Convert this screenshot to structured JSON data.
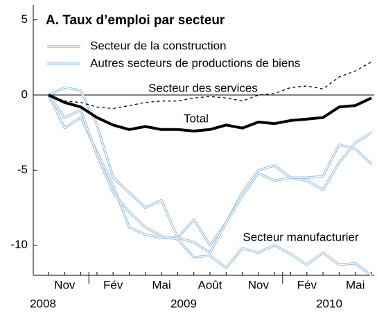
{
  "chart_data": {
    "type": "line",
    "title": "A. Taux d’emploi par secteur",
    "categories": [
      null,
      "Nov",
      null,
      null,
      "Fév",
      null,
      null,
      "Mai",
      null,
      null,
      "Août",
      null,
      null,
      "Nov",
      null,
      null,
      "Fév",
      null,
      null,
      "Mai",
      null
    ],
    "years": [
      "2008",
      "2009",
      "2010"
    ],
    "ylim": [
      -12,
      6
    ],
    "yticks": [
      5,
      0,
      -5,
      -10
    ],
    "series": [
      {
        "name": "Secteur de la construction",
        "color": "#9ec3e0",
        "style": "double",
        "legend": true,
        "values": [
          0,
          0.5,
          0.3,
          -2,
          -5.5,
          -6.5,
          -7.5,
          -7,
          -9.5,
          -8.3,
          -10,
          -8.5,
          -6.5,
          -5.0,
          -4.7,
          -5.5,
          -5.7,
          -6.3,
          -4.5,
          -3.2,
          -2.5
        ]
      },
      {
        "name": "Autres secteurs de productions de biens",
        "color": "#9ec3e0",
        "style": "double",
        "legend": true,
        "values": [
          0,
          -2.2,
          -1.5,
          -3.8,
          -6,
          -8.8,
          -9.3,
          -9.5,
          -9.5,
          -9.8,
          -10.5,
          -8.5,
          -6.7,
          -5.2,
          -5.7,
          -5.5,
          -5.5,
          -5.4,
          -3.3,
          -3.6,
          -4.6
        ]
      },
      {
        "name": "Secteur manufacturier",
        "color": "#9ec3e0",
        "style": "double",
        "legend": false,
        "values": [
          0,
          -1.5,
          -1.0,
          -4,
          -6.5,
          -7.8,
          -8.8,
          -9.4,
          -9.6,
          -10.8,
          -10.7,
          -11.5,
          -10.2,
          -10.5,
          -10.0,
          -10.6,
          -11.3,
          -10.5,
          -11.3,
          -11.2,
          -12.0
        ]
      },
      {
        "name": "Secteur des services",
        "color": "#000000",
        "style": "dashed",
        "legend": false,
        "values": [
          0,
          -0.4,
          -0.5,
          -0.8,
          -0.9,
          -0.7,
          -0.5,
          -0.4,
          -0.4,
          -0.2,
          -0.1,
          -0.2,
          -0.4,
          0,
          0.1,
          0.5,
          0.6,
          0.4,
          1.2,
          1.6,
          2.2
        ]
      },
      {
        "name": "Total",
        "color": "#000000",
        "style": "bold",
        "legend": false,
        "values": [
          0,
          -0.5,
          -0.8,
          -1.5,
          -2.0,
          -2.3,
          -2.1,
          -2.3,
          -2.3,
          -2.4,
          -2.3,
          -2.0,
          -2.2,
          -1.8,
          -1.9,
          -1.7,
          -1.6,
          -1.5,
          -0.8,
          -0.7,
          -0.2
        ]
      }
    ]
  }
}
